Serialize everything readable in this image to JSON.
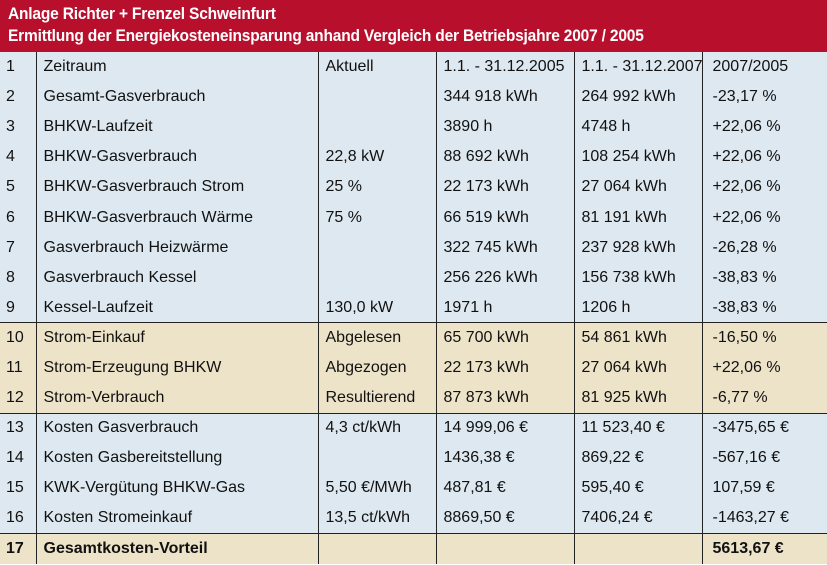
{
  "header": {
    "title": "Anlage Richter + Frenzel Schweinfurt",
    "subtitle": "Ermittlung der Energiekosteneinsparung anhand Vergleich der Betriebsjahre 2007 / 2005"
  },
  "colors": {
    "header_bg": "#b80f2d",
    "row_blue": "#dde8f0",
    "row_tan": "#ede3c8"
  },
  "rows": [
    {
      "nr": "1",
      "label": "Zeitraum",
      "aktuell": "Aktuell",
      "y2005": "1.1. - 31.12.2005",
      "y2007": "1.1. - 31.12.2007",
      "diff": "2007/2005",
      "style": "blue"
    },
    {
      "nr": "2",
      "label": "Gesamt-Gasverbrauch",
      "aktuell": "",
      "y2005": "344 918 kWh",
      "y2007": "264 992 kWh",
      "diff": "-23,17 %",
      "style": "blue"
    },
    {
      "nr": "3",
      "label": "BHKW-Laufzeit",
      "aktuell": "",
      "y2005": "3890 h",
      "y2007": "4748 h",
      "diff": "+22,06 %",
      "style": "blue"
    },
    {
      "nr": "4",
      "label": "BHKW-Gasverbrauch",
      "aktuell": "22,8 kW",
      "y2005": "88 692 kWh",
      "y2007": "108 254 kWh",
      "diff": "+22,06 %",
      "style": "blue"
    },
    {
      "nr": "5",
      "label": "BHKW-Gasverbrauch Strom",
      "aktuell": "25 %",
      "y2005": "22 173 kWh",
      "y2007": "27 064 kWh",
      "diff": "+22,06 %",
      "style": "blue"
    },
    {
      "nr": "6",
      "label": "BHKW-Gasverbrauch Wärme",
      "aktuell": "75 %",
      "y2005": "66 519 kWh",
      "y2007": "81 191 kWh",
      "diff": "+22,06 %",
      "style": "blue"
    },
    {
      "nr": "7",
      "label": "Gasverbrauch Heizwärme",
      "aktuell": "",
      "y2005": "322 745 kWh",
      "y2007": "237 928 kWh",
      "diff": "-26,28 %",
      "style": "blue"
    },
    {
      "nr": "8",
      "label": "Gasverbrauch Kessel",
      "aktuell": "",
      "y2005": "256 226 kWh",
      "y2007": "156 738 kWh",
      "diff": "-38,83 %",
      "style": "blue"
    },
    {
      "nr": "9",
      "label": "Kessel-Laufzeit",
      "aktuell": "130,0 kW",
      "y2005": "1971 h",
      "y2007": "1206 h",
      "diff": "-38,83 %",
      "style": "blue"
    },
    {
      "nr": "10",
      "label": "Strom-Einkauf",
      "aktuell": "Abgelesen",
      "y2005": "65 700 kWh",
      "y2007": "54 861 kWh",
      "diff": "-16,50 %",
      "style": "tan"
    },
    {
      "nr": "11",
      "label": "Strom-Erzeugung BHKW",
      "aktuell": "Abgezogen",
      "y2005": "22 173 kWh",
      "y2007": "27 064 kWh",
      "diff": "+22,06 %",
      "style": "tan"
    },
    {
      "nr": "12",
      "label": "Strom-Verbrauch",
      "aktuell": "Resultierend",
      "y2005": "87 873 kWh",
      "y2007": "81 925 kWh",
      "diff": "-6,77 %",
      "style": "tan"
    },
    {
      "nr": "13",
      "label": "Kosten Gasverbrauch",
      "aktuell": "4,3 ct/kWh",
      "y2005": "14 999,06 €",
      "y2007": "11 523,40 €",
      "diff": "-3475,65 €",
      "style": "blue"
    },
    {
      "nr": "14",
      "label": "Kosten Gasbereitstellung",
      "aktuell": "",
      "y2005": "1436,38 €",
      "y2007": "869,22 €",
      "diff": "-567,16 €",
      "style": "blue"
    },
    {
      "nr": "15",
      "label": "KWK-Vergütung BHKW-Gas",
      "aktuell": "5,50 €/MWh",
      "y2005": "487,81 €",
      "y2007": "595,40 €",
      "diff": "107,59 €",
      "style": "blue"
    },
    {
      "nr": "16",
      "label": "Kosten Stromeinkauf",
      "aktuell": "13,5 ct/kWh",
      "y2005": "8869,50 €",
      "y2007": "7406,24 €",
      "diff": "-1463,27 €",
      "style": "blue"
    },
    {
      "nr": "17",
      "label": "Gesamtkosten-Vorteil",
      "aktuell": "",
      "y2005": "",
      "y2007": "",
      "diff": "5613,67 €",
      "style": "tan-bold"
    }
  ]
}
